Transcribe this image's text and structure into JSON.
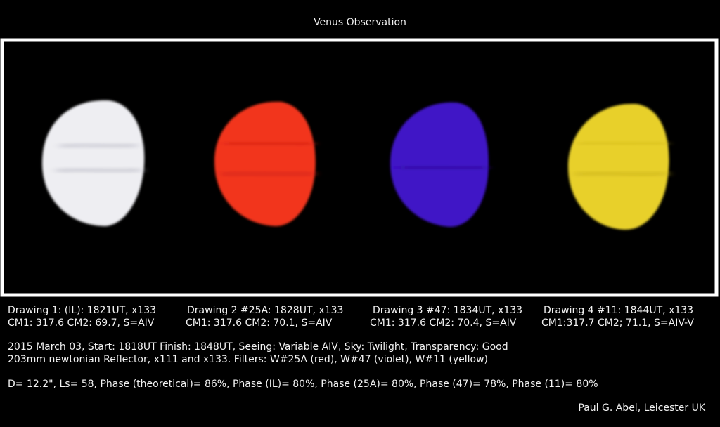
{
  "title": "Venus Observation",
  "drawings": [
    {
      "caption": "Drawing 1: (IL): 1821UT, x133",
      "details": "CM1: 317.6  CM2: 69.7, S=AIV"
    },
    {
      "caption": "Drawing 2 #25A: 1828UT, x133",
      "details": "CM1: 317.6  CM2: 70.1, S=AIV"
    },
    {
      "caption": "Drawing 3 #47: 1834UT, x133",
      "details": "CM1: 317.6  CM2: 70.4, S=AIV"
    },
    {
      "caption": "Drawing 4 #11: 1844UT, x133",
      "details": "CM1:317.7  CM2; 71.1, S=AIV-V"
    }
  ],
  "notes": [
    "2015 March 03, Start: 1818UT  Finish: 1848UT, Seeing: Variable AIV, Sky: Twilight, Transparency: Good",
    "203mm newtonian Reflector, x111 and x133.  Filters: W#25A (red), W#47 (violet), W#11 (yellow)",
    "D= 12.2\", Ls= 58, Phase (theoretical)= 86%, Phase (IL)= 80%, Phase (25A)= 80%, Phase (47)= 78%, Phase (11)= 80%"
  ],
  "credit": "Paul G. Abel, Leicester UK"
}
